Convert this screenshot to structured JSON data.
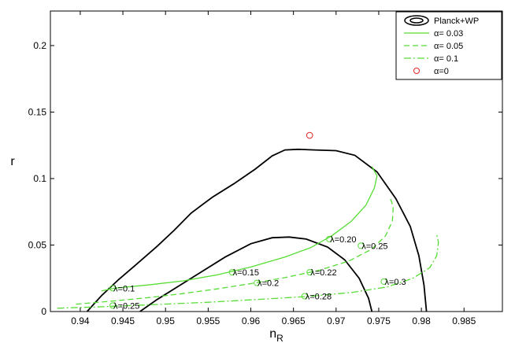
{
  "chart_data": {
    "type": "line",
    "xlabel": "n",
    "xlabel_sub": "R",
    "ylabel": "r",
    "xlim": [
      0.9365,
      0.9895
    ],
    "ylim": [
      0,
      0.226
    ],
    "xticks": [
      0.94,
      0.945,
      0.95,
      0.955,
      0.96,
      0.965,
      0.97,
      0.975,
      0.98,
      0.985
    ],
    "xtick_labels": [
      "0.94",
      "0.945",
      "0.95",
      "0.955",
      "0.96",
      "0.965",
      "0.97",
      "0.975",
      "0.98",
      "0.985"
    ],
    "yticks": [
      0,
      0.05,
      0.1,
      0.15,
      0.2
    ],
    "ytick_labels": [
      "0",
      "0.05",
      "0.1",
      "0.15",
      "0.2"
    ],
    "grid": false,
    "legend_position": "top-right",
    "colors": {
      "contour": "#000000",
      "series": "#55dd33",
      "alpha0": "#dd2222"
    },
    "contours": [
      {
        "name": "Planck+WP",
        "level": "outer",
        "points": [
          [
            0.9408,
            0
          ],
          [
            0.9425,
            0.012
          ],
          [
            0.9445,
            0.024
          ],
          [
            0.9465,
            0.035
          ],
          [
            0.949,
            0.049
          ],
          [
            0.951,
            0.061
          ],
          [
            0.953,
            0.074
          ],
          [
            0.9555,
            0.086
          ],
          [
            0.958,
            0.096
          ],
          [
            0.9605,
            0.107
          ],
          [
            0.9625,
            0.117
          ],
          [
            0.964,
            0.1215
          ],
          [
            0.9655,
            0.122
          ],
          [
            0.9675,
            0.1215
          ],
          [
            0.97,
            0.121
          ],
          [
            0.9722,
            0.1175
          ],
          [
            0.9748,
            0.105
          ],
          [
            0.977,
            0.085
          ],
          [
            0.9787,
            0.064
          ],
          [
            0.9797,
            0.042
          ],
          [
            0.9803,
            0.02
          ],
          [
            0.9806,
            0
          ]
        ]
      },
      {
        "name": "Planck+WP",
        "level": "inner",
        "points": [
          [
            0.947,
            0
          ],
          [
            0.949,
            0.009
          ],
          [
            0.9515,
            0.019
          ],
          [
            0.954,
            0.029
          ],
          [
            0.957,
            0.041
          ],
          [
            0.96,
            0.051
          ],
          [
            0.9625,
            0.0555
          ],
          [
            0.9645,
            0.056
          ],
          [
            0.9665,
            0.0545
          ],
          [
            0.969,
            0.0485
          ],
          [
            0.971,
            0.039
          ],
          [
            0.9727,
            0.025
          ],
          [
            0.9738,
            0.01
          ],
          [
            0.9742,
            0
          ]
        ]
      }
    ],
    "series": [
      {
        "name": "α= 0.03",
        "style": "solid",
        "points": [
          [
            0.9425,
            0.0155
          ],
          [
            0.944,
            0.0175
          ],
          [
            0.948,
            0.02
          ],
          [
            0.952,
            0.023
          ],
          [
            0.956,
            0.0275
          ],
          [
            0.96,
            0.0335
          ],
          [
            0.964,
            0.041
          ],
          [
            0.967,
            0.048
          ],
          [
            0.9695,
            0.057
          ],
          [
            0.9718,
            0.068
          ],
          [
            0.9735,
            0.08
          ],
          [
            0.9745,
            0.093
          ],
          [
            0.9748,
            0.102
          ],
          [
            0.9742,
            0.109
          ]
        ]
      },
      {
        "name": "α= 0.05",
        "style": "dashed",
        "points": [
          [
            0.9395,
            0.0055
          ],
          [
            0.944,
            0.008
          ],
          [
            0.948,
            0.0105
          ],
          [
            0.952,
            0.0135
          ],
          [
            0.956,
            0.017
          ],
          [
            0.96,
            0.021
          ],
          [
            0.964,
            0.0255
          ],
          [
            0.968,
            0.031
          ],
          [
            0.9715,
            0.038
          ],
          [
            0.9742,
            0.047
          ],
          [
            0.9758,
            0.057
          ],
          [
            0.9766,
            0.068
          ],
          [
            0.9767,
            0.079
          ],
          [
            0.9763,
            0.086
          ]
        ]
      },
      {
        "name": "α= 0.1",
        "style": "dashdot",
        "points": [
          [
            0.9373,
            0.0025
          ],
          [
            0.942,
            0.0035
          ],
          [
            0.948,
            0.005
          ],
          [
            0.955,
            0.007
          ],
          [
            0.962,
            0.0095
          ],
          [
            0.967,
            0.0115
          ],
          [
            0.972,
            0.0145
          ],
          [
            0.976,
            0.0185
          ],
          [
            0.979,
            0.025
          ],
          [
            0.981,
            0.033
          ],
          [
            0.9818,
            0.042
          ],
          [
            0.982,
            0.052
          ],
          [
            0.9818,
            0.058
          ]
        ]
      }
    ],
    "alpha0_point": {
      "name": "α=0",
      "x": 0.9669,
      "y": 0.1325
    },
    "legend": [
      {
        "label": "Planck+WP",
        "kind": "contour"
      },
      {
        "label": "α= 0.03",
        "kind": "solid"
      },
      {
        "label": "α= 0.05",
        "kind": "dashed"
      },
      {
        "label": "α= 0.1",
        "kind": "dashdot"
      },
      {
        "label": "α=0",
        "kind": "marker"
      }
    ],
    "annotations": [
      {
        "text": "λ=0.1",
        "x": 0.9438,
        "y": 0.0175
      },
      {
        "text": "λ=0.25",
        "x": 0.9438,
        "y": 0.0045
      },
      {
        "text": "λ=0.15",
        "x": 0.9578,
        "y": 0.0295
      },
      {
        "text": "λ=0.2",
        "x": 0.9607,
        "y": 0.0215
      },
      {
        "text": "λ=0.20",
        "x": 0.9692,
        "y": 0.0545
      },
      {
        "text": "λ=0.22",
        "x": 0.9669,
        "y": 0.0295
      },
      {
        "text": "λ=0.28",
        "x": 0.9663,
        "y": 0.0115
      },
      {
        "text": "λ=0.25",
        "x": 0.9729,
        "y": 0.0495
      },
      {
        "text": "λ=0.3",
        "x": 0.9756,
        "y": 0.0225
      }
    ]
  }
}
